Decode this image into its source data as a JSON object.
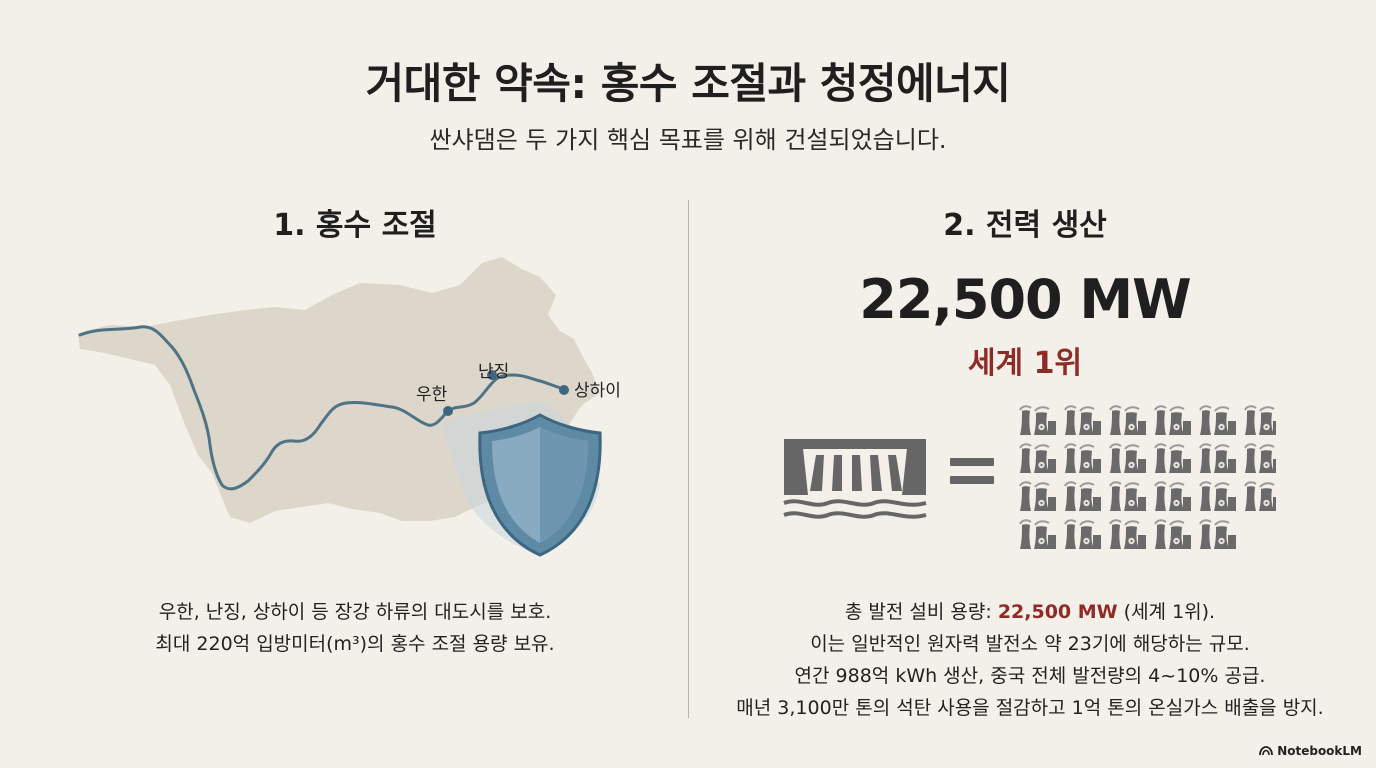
{
  "header": {
    "title": "거대한 약속: 홍수 조절과 청정에너지",
    "subtitle": "싼샤댐은 두 가지 핵심 목표를 위해 건설되었습니다."
  },
  "left_section": {
    "title": "1. 홍수 조절",
    "map": {
      "cities": [
        {
          "name": "우한"
        },
        {
          "name": "난징"
        },
        {
          "name": "상하이"
        }
      ],
      "icons": [
        "river-map-icon",
        "shield-icon"
      ]
    },
    "text_lines": [
      "우한, 난징, 상하이 등 장강 하류의 대도시를 보호.",
      "최대 220억 입방미터(m³)의 홍수 조절 용량 보유."
    ]
  },
  "right_section": {
    "title": "2. 전력 생산",
    "capacity": "22,500 MW",
    "rank": "세계 1위",
    "comparison": {
      "left_icon": "hydro-dam-icon",
      "operator": "=",
      "right_icon": "nuclear-plant-icon",
      "count": 23
    },
    "text_lines": {
      "line1_prefix": "총 발전 설비 용량: ",
      "line1_accent": "22,500 MW",
      "line1_suffix": " (세계 1위).",
      "line2": "이는 일반적인 원자력 발전소 약 23기에 해당하는 규모.",
      "line3": "연간 988억 kWh 생산, 중국 전체 발전량의 4~10% 공급.",
      "line4": "매년 3,100만 톤의 석탄 사용을 절감하고 1억 톤의 온실가스 배출을 방지."
    }
  },
  "colors": {
    "background": "#f3f0e9",
    "accent_red": "#8e2b26",
    "river": "#4d7385",
    "land": "#ddd6cb",
    "icon_gray": "#666666"
  },
  "brand": {
    "label": "NotebookLM"
  }
}
